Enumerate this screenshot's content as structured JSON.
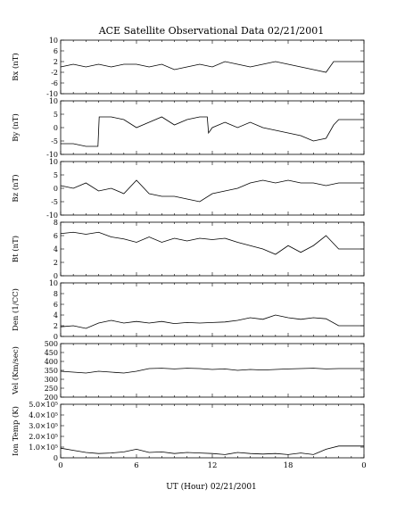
{
  "chart_data": {
    "type": "line",
    "title": "ACE Satellite Observational Data   02/21/2001",
    "xlabel": "UT (Hour)   02/21/2001",
    "x_ticks": [
      "0",
      "6",
      "12",
      "18",
      "0"
    ],
    "x_tick_values": [
      0,
      6,
      12,
      18,
      24
    ],
    "xlim": [
      0,
      24
    ],
    "panels": [
      {
        "ylabel": "Bx (nT)",
        "ylim": [
          -10,
          10
        ],
        "y_ticks": [
          {
            "value": 10,
            "label": "10"
          },
          {
            "value": 6,
            "label": "6"
          },
          {
            "value": 2,
            "label": "2"
          },
          {
            "value": -2,
            "label": "-2"
          },
          {
            "value": -6,
            "label": "-6"
          },
          {
            "value": -10,
            "label": "-10"
          }
        ],
        "series": [
          {
            "x": [
              0,
              1,
              2,
              3,
              4,
              5,
              6,
              7,
              8,
              9,
              10,
              11,
              12,
              13,
              14,
              15,
              16,
              17,
              18,
              19,
              20,
              21,
              21.6,
              22,
              24
            ],
            "y": [
              0,
              1,
              0,
              1,
              0,
              1,
              1,
              0,
              1,
              -1,
              0,
              1,
              0,
              2,
              1,
              0,
              1,
              2,
              1,
              0,
              -1,
              -2,
              2,
              2,
              2
            ]
          }
        ]
      },
      {
        "ylabel": "By (nT)",
        "ylim": [
          -10,
          10
        ],
        "y_ticks": [
          {
            "value": 10,
            "label": "10"
          },
          {
            "value": 5,
            "label": "5"
          },
          {
            "value": 0,
            "label": "0"
          },
          {
            "value": -5,
            "label": "-5"
          },
          {
            "value": -10,
            "label": "-10"
          }
        ],
        "series": [
          {
            "x": [
              0,
              1,
              2,
              2.95,
              3.05,
              4,
              5,
              6,
              7,
              8,
              9,
              10,
              11,
              11.6,
              11.7,
              12,
              13,
              14,
              15,
              16,
              17,
              18,
              19,
              20,
              21,
              21.6,
              22,
              24
            ],
            "y": [
              -6,
              -6,
              -7,
              -7,
              4,
              4,
              3,
              0,
              2,
              4,
              1,
              3,
              4,
              4,
              -2,
              0,
              2,
              0,
              2,
              0,
              -1,
              -2,
              -3,
              -5,
              -4,
              1,
              3,
              3
            ]
          }
        ]
      },
      {
        "ylabel": "Bz (nT)",
        "ylim": [
          -10,
          10
        ],
        "y_ticks": [
          {
            "value": 10,
            "label": "10"
          },
          {
            "value": 5,
            "label": "5"
          },
          {
            "value": 0,
            "label": "0"
          },
          {
            "value": -5,
            "label": "-5"
          },
          {
            "value": -10,
            "label": "-10"
          }
        ],
        "series": [
          {
            "x": [
              0,
              1,
              2,
              3,
              4,
              5,
              6,
              7,
              8,
              9,
              10,
              11,
              12,
              13,
              14,
              15,
              16,
              17,
              18,
              19,
              20,
              21,
              22,
              24
            ],
            "y": [
              1,
              0,
              2,
              -1,
              0,
              -2,
              3,
              -2,
              -3,
              -3,
              -4,
              -5,
              -2,
              -1,
              0,
              2,
              3,
              2,
              3,
              2,
              2,
              1,
              2,
              2
            ]
          }
        ]
      },
      {
        "ylabel": "Bt (nT)",
        "ylim": [
          0,
          8
        ],
        "y_ticks": [
          {
            "value": 8,
            "label": "8"
          },
          {
            "value": 6,
            "label": "6"
          },
          {
            "value": 4,
            "label": "4"
          },
          {
            "value": 2,
            "label": "2"
          },
          {
            "value": 0,
            "label": "0"
          }
        ],
        "series": [
          {
            "x": [
              0,
              1,
              2,
              3,
              4,
              5,
              6,
              7,
              8,
              9,
              10,
              11,
              12,
              13,
              14,
              15,
              16,
              17,
              18,
              19,
              20,
              21,
              22,
              24
            ],
            "y": [
              6.3,
              6.5,
              6.2,
              6.5,
              5.8,
              5.5,
              5,
              5.8,
              5,
              5.6,
              5.2,
              5.6,
              5.4,
              5.6,
              5,
              4.5,
              4,
              3.2,
              4.5,
              3.5,
              4.5,
              6,
              4,
              4
            ]
          }
        ]
      },
      {
        "ylabel": "Den (1/CC)",
        "ylim": [
          0,
          10
        ],
        "y_ticks": [
          {
            "value": 10,
            "label": "10"
          },
          {
            "value": 8,
            "label": "8"
          },
          {
            "value": 6,
            "label": "6"
          },
          {
            "value": 4,
            "label": "4"
          },
          {
            "value": 2,
            "label": "2"
          },
          {
            "value": 0,
            "label": "0"
          }
        ],
        "series": [
          {
            "x": [
              0,
              1,
              2,
              3,
              4,
              5,
              6,
              7,
              8,
              9,
              10,
              11,
              12,
              13,
              14,
              15,
              16,
              17,
              18,
              19,
              20,
              21,
              22,
              24
            ],
            "y": [
              1.8,
              2,
              1.5,
              2.5,
              3,
              2.5,
              2.8,
              2.5,
              2.8,
              2.4,
              2.6,
              2.5,
              2.6,
              2.7,
              3,
              3.5,
              3.2,
              4,
              3.5,
              3.2,
              3.5,
              3.3,
              2,
              2
            ]
          }
        ]
      },
      {
        "ylabel": "Vel (Km/sec)",
        "ylim": [
          200,
          500
        ],
        "y_ticks": [
          {
            "value": 500,
            "label": "500"
          },
          {
            "value": 450,
            "label": "450"
          },
          {
            "value": 400,
            "label": "400"
          },
          {
            "value": 350,
            "label": "350"
          },
          {
            "value": 300,
            "label": "300"
          },
          {
            "value": 250,
            "label": "250"
          },
          {
            "value": 200,
            "label": "200"
          }
        ],
        "series": [
          {
            "x": [
              0,
              1,
              2,
              3,
              4,
              5,
              6,
              7,
              8,
              9,
              10,
              11,
              12,
              13,
              14,
              15,
              16,
              17,
              18,
              19,
              20,
              21,
              22,
              24
            ],
            "y": [
              345,
              340,
              335,
              345,
              340,
              335,
              345,
              360,
              362,
              358,
              362,
              360,
              355,
              358,
              350,
              355,
              352,
              355,
              358,
              360,
              362,
              358,
              360,
              360
            ]
          }
        ]
      },
      {
        "ylabel": "Ion Temp (K)",
        "ylim": [
          0,
          500000
        ],
        "y_ticks": [
          {
            "value": 500000,
            "label": "5.0×10⁵"
          },
          {
            "value": 400000,
            "label": "4.0×10⁵"
          },
          {
            "value": 300000,
            "label": "3.0×10⁵"
          },
          {
            "value": 200000,
            "label": "2.0×10⁵"
          },
          {
            "value": 100000,
            "label": "1.0×10⁵"
          },
          {
            "value": 0,
            "label": "0"
          }
        ],
        "series": [
          {
            "x": [
              0,
              1,
              2,
              3,
              4,
              5,
              6,
              7,
              8,
              9,
              10,
              11,
              12,
              13,
              14,
              15,
              16,
              17,
              18,
              19,
              20,
              21,
              22,
              24
            ],
            "y": [
              90000,
              70000,
              50000,
              40000,
              45000,
              55000,
              80000,
              50000,
              55000,
              40000,
              50000,
              45000,
              40000,
              30000,
              50000,
              40000,
              35000,
              40000,
              30000,
              45000,
              30000,
              80000,
              110000,
              110000
            ]
          }
        ]
      }
    ]
  }
}
